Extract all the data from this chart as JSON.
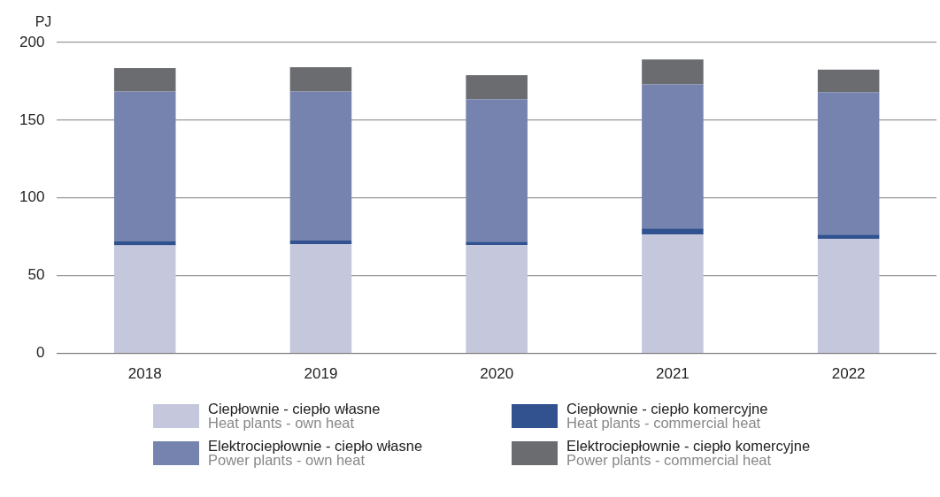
{
  "chart_data": {
    "type": "bar",
    "stacked": true,
    "ylabel": "PJ",
    "categories": [
      "2018",
      "2019",
      "2020",
      "2021",
      "2022"
    ],
    "ylim": [
      0,
      200
    ],
    "yticks": [
      0,
      50,
      100,
      150,
      200
    ],
    "grid": "y",
    "legend": "bottom",
    "series": [
      {
        "name": "Ciepłownie - ciepło własne\nHeat plants - own heat",
        "color": "#c5c7dc",
        "values": [
          69.4,
          70.3,
          69.6,
          76.4,
          73.7
        ]
      },
      {
        "name": "Ciepłownie - ciepło komercyjne\nHeat plants - commercial heat",
        "color": "#31528f",
        "values": [
          2.6,
          2.3,
          2.3,
          4.0,
          2.7
        ]
      },
      {
        "name": "Elektrociepłownie - ciepło własne\nPower plants - own heat",
        "color": "#7583ae",
        "values": [
          96.5,
          95.9,
          91.6,
          92.6,
          91.6
        ]
      },
      {
        "name": "Elektrociepłownie - ciepło komercyjne\nPower plants - commercial heat",
        "color": "#6b6c70",
        "values": [
          15.0,
          15.6,
          15.5,
          16.0,
          14.5
        ]
      }
    ]
  }
}
